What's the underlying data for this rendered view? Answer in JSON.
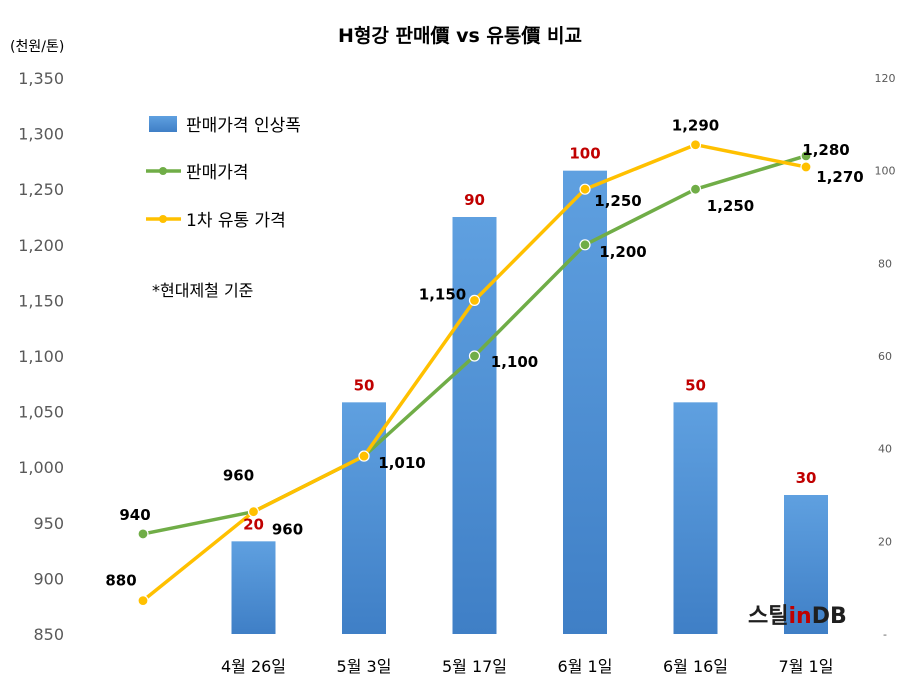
{
  "unit_label": "(천원/톤)",
  "note": "*현대제철 기준",
  "logo": "스틸inDB",
  "colors": {
    "bar": "#4f8fd3",
    "bar_label": "#c00000",
    "sale_line": "#70ad47",
    "dist_line": "#ffc000"
  },
  "chart_data": {
    "type": "bar",
    "title": "H형강 판매價 vs 유통價 비교",
    "categories": [
      "",
      "4월 26일",
      "5월 3일",
      "5월 17일",
      "6월 1일",
      "6월 16일",
      "7월 1일"
    ],
    "left_axis": {
      "ylim": [
        850,
        1350
      ],
      "ticks": [
        "850",
        "900",
        "950",
        "1,000",
        "1,050",
        "1,100",
        "1,150",
        "1,200",
        "1,250",
        "1,300",
        "1,350"
      ]
    },
    "right_axis": {
      "ylim": [
        0,
        120
      ],
      "ticks": [
        "-",
        "20",
        "40",
        "60",
        "80",
        "100",
        "120"
      ]
    },
    "series": [
      {
        "name": "판매가격 인상폭",
        "kind": "bar",
        "axis": "right",
        "points": [
          {
            "x": 1,
            "y": 20,
            "label": "20"
          },
          {
            "x": 2,
            "y": 50,
            "label": "50"
          },
          {
            "x": 3,
            "y": 90,
            "label": "90"
          },
          {
            "x": 4,
            "y": 100,
            "label": "100"
          },
          {
            "x": 5,
            "y": 50,
            "label": "50"
          },
          {
            "x": 6,
            "y": 30,
            "label": "30"
          }
        ]
      },
      {
        "name": "판매가격",
        "kind": "line",
        "axis": "left",
        "points": [
          {
            "x": 0.0,
            "y": 940,
            "label": "940"
          },
          {
            "x": 1.0,
            "y": 960,
            "label": "960"
          },
          {
            "x": 2.0,
            "y": 1010,
            "label": ""
          },
          {
            "x": 3.0,
            "y": 1100,
            "label": "1,100"
          },
          {
            "x": 4.0,
            "y": 1200,
            "label": "1,200"
          },
          {
            "x": 5.0,
            "y": 1250,
            "label": "1,250"
          },
          {
            "x": 6.0,
            "y": 1280,
            "label": "1,280"
          }
        ]
      },
      {
        "name": "1차 유통 가격",
        "kind": "line",
        "axis": "left",
        "points": [
          {
            "x": 0.0,
            "y": 880,
            "label": "880"
          },
          {
            "x": 1.0,
            "y": 960,
            "label": "960"
          },
          {
            "x": 2.0,
            "y": 1010,
            "label": "1,010"
          },
          {
            "x": 3.0,
            "y": 1150,
            "label": "1,150"
          },
          {
            "x": 4.0,
            "y": 1250,
            "label": "1,250"
          },
          {
            "x": 5.0,
            "y": 1290,
            "label": "1,290"
          },
          {
            "x": 6.0,
            "y": 1270,
            "label": "1,270"
          }
        ]
      }
    ]
  }
}
